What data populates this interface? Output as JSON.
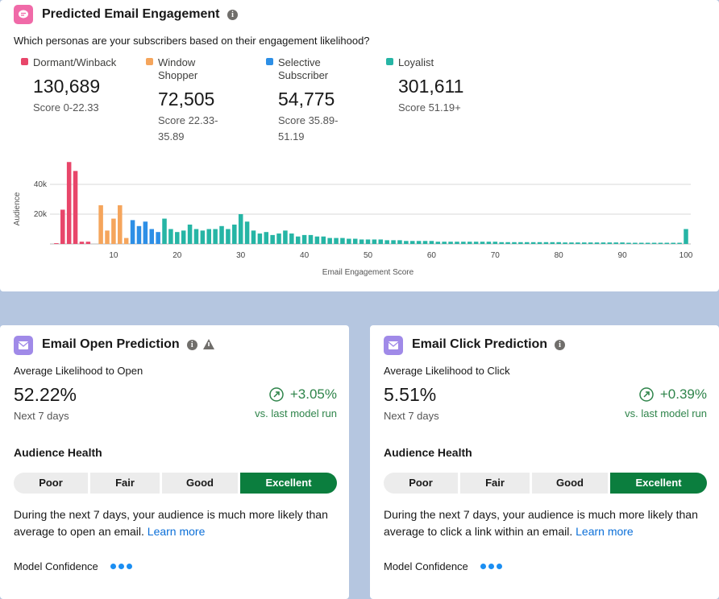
{
  "engagement": {
    "title": "Predicted Email Engagement",
    "question": "Which personas are your subscribers based on their engagement likelihood?",
    "personas": [
      {
        "name": "Dormant/Winback",
        "count": "130,689",
        "range": "Score 0-22.33"
      },
      {
        "name": "Window Shopper",
        "count": "72,505",
        "range": "Score 22.33-35.89"
      },
      {
        "name": "Selective Subscriber",
        "count": "54,775",
        "range": "Score 35.89-51.19"
      },
      {
        "name": "Loyalist",
        "count": "301,611",
        "range": "Score 51.19+"
      }
    ],
    "chart_data": {
      "type": "bar",
      "x_label": "Email Engagement Score",
      "y_label": "Audience",
      "xlim": [
        0,
        100
      ],
      "ylim": [
        0,
        60000
      ],
      "xticks": [
        10,
        20,
        30,
        40,
        50,
        60,
        70,
        80,
        90,
        100
      ],
      "yticks": [
        {
          "value": 20000,
          "label": "20k"
        },
        {
          "value": 40000,
          "label": "40k"
        }
      ],
      "grid": true,
      "series": [
        {
          "color": "#e8466a",
          "x": [
            1,
            2,
            3,
            4,
            5,
            6,
            7
          ],
          "values": [
            500,
            23000,
            55000,
            49000,
            1500,
            1500,
            0
          ]
        },
        {
          "color": "#f5a55c",
          "x": [
            8,
            9,
            10,
            11,
            12
          ],
          "values": [
            26000,
            9000,
            17000,
            26000,
            4000
          ]
        },
        {
          "color": "#2d8fe6",
          "x": [
            13,
            14,
            15,
            16,
            17
          ],
          "values": [
            16000,
            12000,
            15000,
            10000,
            8000
          ]
        },
        {
          "color": "#26b5a5",
          "x": [
            18,
            19,
            20,
            21,
            22,
            23,
            24,
            25,
            26,
            27,
            28,
            29,
            30,
            31,
            32,
            33,
            34,
            35,
            36,
            37,
            38,
            39,
            40,
            41,
            42,
            43,
            44,
            45,
            46,
            47,
            48,
            49,
            50,
            51,
            52,
            53,
            54,
            55,
            56,
            57,
            58,
            59,
            60,
            61,
            62,
            63,
            64,
            65,
            66,
            67,
            68,
            69,
            70,
            71,
            72,
            73,
            74,
            75,
            76,
            77,
            78,
            79,
            80,
            81,
            82,
            83,
            84,
            85,
            86,
            87,
            88,
            89,
            90,
            91,
            92,
            93,
            94,
            95,
            96,
            97,
            98,
            99,
            100
          ],
          "values": [
            17000,
            10000,
            8000,
            9000,
            13000,
            10000,
            9000,
            10000,
            10000,
            12000,
            10000,
            13000,
            20000,
            15000,
            9000,
            7000,
            8000,
            6000,
            7000,
            9000,
            7000,
            5000,
            6000,
            6000,
            5000,
            5000,
            4000,
            4000,
            4000,
            3500,
            3500,
            3000,
            3000,
            3000,
            3000,
            2500,
            2500,
            2500,
            2000,
            2000,
            2000,
            2000,
            2000,
            1500,
            1500,
            1500,
            1500,
            1500,
            1500,
            1500,
            1500,
            1500,
            1500,
            1200,
            1200,
            1200,
            1200,
            1200,
            1200,
            1200,
            1200,
            1200,
            1200,
            1000,
            1000,
            1000,
            1000,
            1000,
            1000,
            1000,
            1000,
            1000,
            1000,
            800,
            800,
            800,
            800,
            800,
            800,
            800,
            800,
            800,
            10000
          ]
        }
      ]
    }
  },
  "open": {
    "title": "Email Open Prediction",
    "metric_label": "Average Likelihood to Open",
    "value": "52.22%",
    "period": "Next 7 days",
    "change": "+3.05%",
    "change_note": "vs. last model run",
    "health_title": "Audience Health",
    "health_levels": [
      "Poor",
      "Fair",
      "Good",
      "Excellent"
    ],
    "active_level": 3,
    "description": "During the next 7 days, your audience is much more likely than average to open an email.",
    "link": "Learn more",
    "confidence_label": "Model Confidence"
  },
  "click": {
    "title": "Email Click Prediction",
    "metric_label": "Average Likelihood to Click",
    "value": "5.51%",
    "period": "Next 7 days",
    "change": "+0.39%",
    "change_note": "vs. last model run",
    "health_title": "Audience Health",
    "health_levels": [
      "Poor",
      "Fair",
      "Good",
      "Excellent"
    ],
    "active_level": 3,
    "description": "During the next 7 days, your audience is much more likely than average to click a link within an email.",
    "link": "Learn more",
    "confidence_label": "Model Confidence"
  }
}
